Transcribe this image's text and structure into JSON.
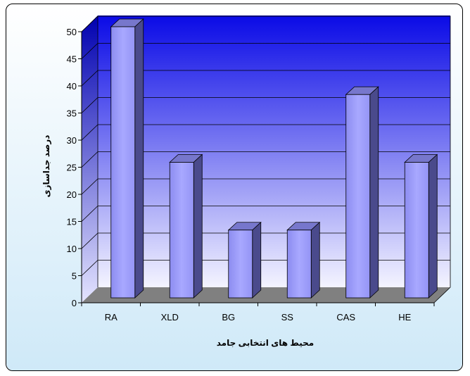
{
  "chart_data": {
    "type": "bar",
    "categories": [
      "RA",
      "XLD",
      "BG",
      "SS",
      "CAS",
      "HE"
    ],
    "values": [
      50,
      25,
      12.5,
      12.5,
      37.5,
      25
    ],
    "ylim": [
      0,
      50
    ],
    "yticks": [
      0,
      5,
      10,
      15,
      20,
      25,
      30,
      35,
      40,
      45,
      50
    ],
    "xlabel": "محیط های انتخابی جامد",
    "ylabel": "درصد جداسازی",
    "grid": true,
    "style": "3d-column",
    "colors": {
      "bar_front": "#9999ff",
      "bar_side": "#4a4a8c",
      "bar_top": "#7777cc",
      "wall_top": "#0a0ae6",
      "wall_bottom": "#f4f4ff",
      "floor": "#808080",
      "frame_background": "#cfe9f8"
    }
  }
}
